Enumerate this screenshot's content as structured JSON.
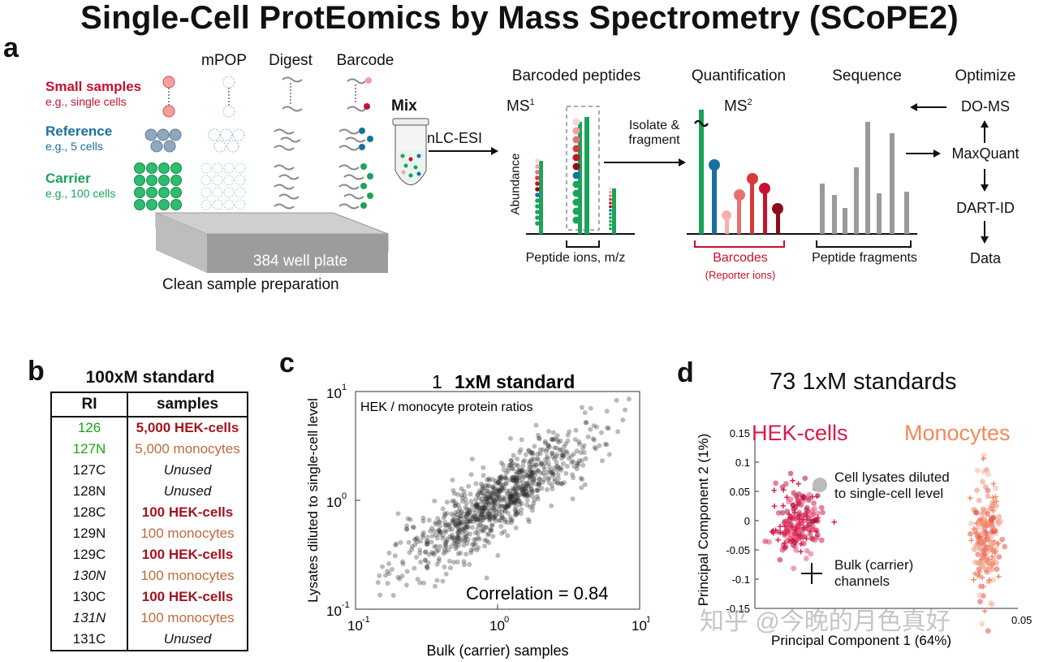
{
  "title": "Single-Cell ProtEomics by Mass Spectrometry (SCoPE2)",
  "panel_a": {
    "label": "a",
    "col_headers": [
      "mPOP",
      "Digest",
      "Barcode"
    ],
    "rows": [
      {
        "name": "Small samples",
        "sub": "e.g., single cells"
      },
      {
        "name": "Reference",
        "sub": "e.g., 5 cells"
      },
      {
        "name": "Carrier",
        "sub": "e.g., 100 cells"
      }
    ],
    "mix": "Mix",
    "nlc": "nLC-ESI",
    "plate": "384 well plate",
    "prep": "Clean sample preparation",
    "stage_headers": [
      "Barcoded peptides",
      "Quantification",
      "Sequence",
      "Optimize"
    ],
    "ms1": "MS",
    "ms1_sup": "1",
    "ms2": "MS",
    "ms2_sup": "2",
    "abundance": "Abundance",
    "isolate": "Isolate &",
    "fragment": "fragment",
    "peptide_ions": "Peptide ions, m/z",
    "barcodes": "Barcodes",
    "reporter": "(Reporter ions)",
    "fragments": "Peptide fragments",
    "pipeline": [
      "DO-MS",
      "MaxQuant",
      "DART-ID",
      "Data"
    ]
  },
  "panel_b": {
    "label": "b",
    "title": "100xM standard",
    "headers": [
      "RI",
      "samples"
    ],
    "rows": [
      {
        "ri": "126",
        "sample": "5,000 HEK-cells",
        "ri_style": "green",
        "style": "hek"
      },
      {
        "ri": "127N",
        "sample": "5,000 monocytes",
        "ri_style": "green",
        "style": "mono"
      },
      {
        "ri": "127C",
        "sample": "Unused",
        "ri_style": "plain",
        "style": "unused"
      },
      {
        "ri": "128N",
        "sample": "Unused",
        "ri_style": "plain",
        "style": "unused"
      },
      {
        "ri": "128C",
        "sample": "100 HEK-cells",
        "ri_style": "plain",
        "style": "hek"
      },
      {
        "ri": "129N",
        "sample": "100  monocytes",
        "ri_style": "plain",
        "style": "mono"
      },
      {
        "ri": "129C",
        "sample": "100  HEK-cells",
        "ri_style": "plain",
        "style": "hek"
      },
      {
        "ri": "130N",
        "sample": "100 monocytes",
        "ri_style": "italic",
        "style": "mono"
      },
      {
        "ri": "130C",
        "sample": "100  HEK-cells",
        "ri_style": "plain",
        "style": "hek"
      },
      {
        "ri": "131N",
        "sample": "100 monocytes",
        "ri_style": "italic",
        "style": "mono"
      },
      {
        "ri": "131C",
        "sample": "Unused",
        "ri_style": "plain",
        "style": "unused"
      }
    ]
  },
  "panel_c": {
    "label": "c",
    "title_num": "1",
    "title": "1xM standard"
  },
  "panel_d": {
    "label": "d",
    "title_num": "73",
    "title": "1xM standards",
    "hek": "HEK-cells",
    "mono": "Monocytes",
    "legend_dot_1": "Cell lysates diluted",
    "legend_dot_2": "to single-cell level",
    "legend_plus_1": "Bulk (carrier)",
    "legend_plus_2": "channels",
    "watermark": "知乎 @今晚的月色真好"
  },
  "chart_data": [
    {
      "type": "scatter",
      "title": "1xM standard",
      "subtitle": "HEK / monocyte protein ratios",
      "xlabel": "Bulk (carrier) samples",
      "ylabel": "Lysates diluted to single-cell level",
      "xscale": "log",
      "yscale": "log",
      "xlim": [
        0.1,
        10
      ],
      "ylim": [
        0.1,
        10
      ],
      "xticks": [
        "10",
        "10",
        "10"
      ],
      "xtick_exp": [
        "-1",
        "0",
        "1"
      ],
      "yticks": [
        "10",
        "10",
        "10"
      ],
      "ytick_exp": [
        "-1",
        "0",
        "1"
      ],
      "annotation": "Correlation = 0.84",
      "correlation": 0.84,
      "n_points_approx": 900,
      "center": [
        1.0,
        1.0
      ]
    },
    {
      "type": "scatter",
      "title": "73 1xM standards",
      "xlabel": "Principal Component 1  (64%)",
      "ylabel": "Principal Component 2  (1%)",
      "ylim": [
        -0.15,
        0.15
      ],
      "yticks": [
        "0.15",
        "0.1",
        "0.05",
        "0",
        "-0.05",
        "-0.1",
        "-0.15"
      ],
      "xticks": [
        "0.05"
      ],
      "series": [
        {
          "name": "HEK-cells",
          "color": "#d81b4a",
          "pc1_range": [
            -0.09,
            -0.06
          ],
          "pc2_range": [
            -0.06,
            0.05
          ]
        },
        {
          "name": "Monocytes",
          "color": "#f08a6a",
          "pc1_range": [
            0.03,
            0.05
          ],
          "pc2_range": [
            -0.14,
            0.1
          ]
        }
      ]
    }
  ]
}
